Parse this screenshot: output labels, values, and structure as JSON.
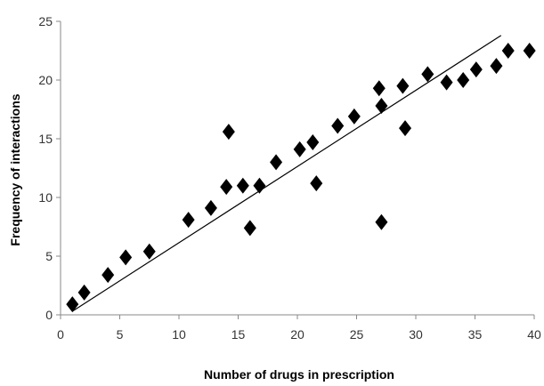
{
  "chart_data": {
    "type": "scatter",
    "title": "",
    "xlabel": "Number of drugs in prescription",
    "ylabel": "Frequency of interactions",
    "xlim": [
      0,
      40
    ],
    "ylim": [
      0,
      25
    ],
    "xticks": [
      0,
      5,
      10,
      15,
      20,
      25,
      30,
      35,
      40
    ],
    "yticks": [
      0,
      5,
      10,
      15,
      20,
      25
    ],
    "grid": false,
    "legend": "none",
    "marker": "diamond",
    "marker_color": "#000000",
    "series": [
      {
        "points": [
          {
            "x": 1,
            "y": 0.9
          },
          {
            "x": 2,
            "y": 1.9
          },
          {
            "x": 4,
            "y": 3.4
          },
          {
            "x": 5.5,
            "y": 4.9
          },
          {
            "x": 7.5,
            "y": 5.4
          },
          {
            "x": 10.8,
            "y": 8.1
          },
          {
            "x": 12.7,
            "y": 9.1
          },
          {
            "x": 14,
            "y": 10.9
          },
          {
            "x": 14.2,
            "y": 15.6
          },
          {
            "x": 15.4,
            "y": 11.0
          },
          {
            "x": 16,
            "y": 7.4
          },
          {
            "x": 16.8,
            "y": 11.0
          },
          {
            "x": 18.2,
            "y": 13.0
          },
          {
            "x": 20.2,
            "y": 14.1
          },
          {
            "x": 21.3,
            "y": 14.7
          },
          {
            "x": 21.6,
            "y": 11.2
          },
          {
            "x": 23.4,
            "y": 16.1
          },
          {
            "x": 24.8,
            "y": 16.9
          },
          {
            "x": 26.9,
            "y": 19.3
          },
          {
            "x": 27.1,
            "y": 17.8
          },
          {
            "x": 27.1,
            "y": 7.9
          },
          {
            "x": 28.9,
            "y": 19.5
          },
          {
            "x": 29.1,
            "y": 15.9
          },
          {
            "x": 31,
            "y": 20.5
          },
          {
            "x": 32.6,
            "y": 19.8
          },
          {
            "x": 34,
            "y": 20.0
          },
          {
            "x": 35.1,
            "y": 20.9
          },
          {
            "x": 36.8,
            "y": 21.2
          },
          {
            "x": 37.8,
            "y": 22.5
          },
          {
            "x": 39.6,
            "y": 22.5
          }
        ]
      }
    ],
    "trendline": {
      "type": "linear",
      "from": {
        "x": 1,
        "y": 0.3
      },
      "to": {
        "x": 37.2,
        "y": 23.8
      }
    }
  }
}
